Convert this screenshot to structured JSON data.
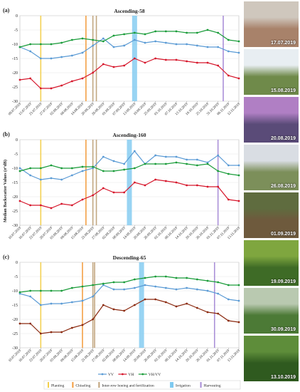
{
  "ylabel": "Median Backscatter Values (σ°dB)",
  "chart_data": [
    {
      "type": "line",
      "panel_label": "(a)",
      "title": "Ascending-58",
      "ylim": [
        -30,
        0
      ],
      "yticks": [
        0,
        -5,
        -10,
        -15,
        -20,
        -25,
        -30
      ],
      "x": [
        "09.07.2019",
        "15.07.2019",
        "21.07.2019",
        "27.07.2019",
        "02.08.2019",
        "08.08.2019",
        "14.08.2019",
        "20.08.2019",
        "26.08.2019",
        "01.09.2019",
        "07.09.2019",
        "13.09.2019",
        "19.09.2019",
        "25.09.2019",
        "01.10.2019",
        "07.10.2019",
        "13.10.2019",
        "19.10.2019",
        "25.10.2019",
        "31.10.2019",
        "06.11.2019",
        "12.11.2019"
      ],
      "series": [
        {
          "name": "VV",
          "color": "#5b9bd5",
          "values": [
            -11,
            -12.5,
            -15,
            -15,
            -14.5,
            -14,
            -13,
            -10.5,
            -8,
            -11,
            -10.5,
            -8.5,
            -9.5,
            -9,
            -9.5,
            -10,
            -10,
            -10.5,
            -11,
            -11,
            -12.5,
            -13
          ]
        },
        {
          "name": "VH",
          "color": "#d6162b",
          "values": [
            -22.5,
            -22,
            -25.5,
            -25.5,
            -24.5,
            -23,
            -22,
            -20,
            -17,
            -18,
            -17.5,
            -15,
            -16.5,
            -15,
            -15.5,
            -15.5,
            -16,
            -16.5,
            -16.5,
            -17.5,
            -21,
            -22
          ]
        },
        {
          "name": "VH/VV",
          "color": "#1a9c3a",
          "values": [
            -11,
            -10,
            -10,
            -10,
            -9.5,
            -8.5,
            -8,
            -8.5,
            -9,
            -7,
            -6.5,
            -6,
            -6.5,
            -5.5,
            -5.5,
            -5.5,
            -6,
            -6,
            -5,
            -6,
            -8.5,
            -9
          ]
        }
      ],
      "events": [
        {
          "type": "Planting",
          "x": "21.07.2019"
        },
        {
          "type": "Chiseling",
          "x": "16.08.2019"
        },
        {
          "type": "Inter-row hoeing and fertilization",
          "x": "20.08.2019"
        },
        {
          "type": "Inter-row hoeing and fertilization",
          "x": "22.08.2019"
        },
        {
          "type": "Irrigation",
          "x": "13.09.2019"
        },
        {
          "type": "Harvesting",
          "x": "03.11.2019"
        }
      ]
    },
    {
      "type": "line",
      "panel_label": "(b)",
      "title": "Ascending-160",
      "ylim": [
        -30,
        0
      ],
      "yticks": [
        0,
        -5,
        -10,
        -15,
        -20,
        -25,
        -30
      ],
      "x": [
        "10.07.2019",
        "16.07.2019",
        "22.07.2019",
        "28.07.2019",
        "03.08.2019",
        "09.08.2019",
        "15.08.2019",
        "21.08.2019",
        "27.08.2019",
        "02.09.2019",
        "08.09.2019",
        "14.09.2019",
        "20.09.2019",
        "26.09.2019",
        "02.10.2019",
        "08.10.2019",
        "14.10.2019",
        "20.10.2019",
        "26.10.2019",
        "01.11.2019",
        "07.11.2019",
        "13.11.2019"
      ],
      "series": [
        {
          "name": "VV",
          "color": "#5b9bd5",
          "values": [
            -10,
            -12.5,
            -14,
            -13.5,
            -14,
            -12.5,
            -11,
            -10,
            -6,
            -7.5,
            -8.5,
            -4,
            -8.5,
            -5.5,
            -6,
            -6,
            -7,
            -7,
            -8,
            -5.5,
            -9,
            -9
          ]
        },
        {
          "name": "VH",
          "color": "#d6162b",
          "values": [
            -21.5,
            -23,
            -23,
            -24,
            -22.5,
            -23,
            -21,
            -19.5,
            -17,
            -18.5,
            -18.5,
            -15,
            -16,
            -14,
            -14.5,
            -15,
            -16,
            -16,
            -16.5,
            -16.5,
            -21,
            -21.5
          ]
        },
        {
          "name": "VH/VV",
          "color": "#1a9c3a",
          "values": [
            -11,
            -10,
            -10,
            -9,
            -10,
            -10,
            -9.5,
            -9.5,
            -11,
            -11,
            -10.5,
            -10,
            -8.5,
            -8.5,
            -8.5,
            -8,
            -8.5,
            -9,
            -8.5,
            -11,
            -12,
            -12.5
          ]
        }
      ],
      "events": [
        {
          "type": "Planting",
          "x": "22.07.2019"
        },
        {
          "type": "Chiseling",
          "x": "17.08.2019"
        },
        {
          "type": "Inter-row hoeing and fertilization",
          "x": "21.08.2019"
        },
        {
          "type": "Inter-row hoeing and fertilization",
          "x": "23.08.2019"
        },
        {
          "type": "Irrigation",
          "x": "11.09.2019"
        },
        {
          "type": "Harvesting",
          "x": "01.11.2019"
        }
      ]
    },
    {
      "type": "line",
      "panel_label": "(c)",
      "title": "Descending-65",
      "ylim": [
        -30,
        0
      ],
      "yticks": [
        0,
        -5,
        -10,
        -15,
        -20,
        -25,
        -30
      ],
      "x": [
        "10.07.2019",
        "16.07.2019",
        "22.07.2019",
        "28.07.2019",
        "03.08.2019",
        "09.08.2019",
        "15.08.2019",
        "21.08.2019",
        "27.08.2019",
        "02.09.2019",
        "08.09.2019",
        "14.09.2019",
        "20.09.2019",
        "26.09.2019",
        "02.10.2019",
        "08.10.2019",
        "14.10.2019",
        "20.10.2019",
        "26.10.2019",
        "01.11.2019",
        "07.11.2019",
        "13.11.2019"
      ],
      "series": [
        {
          "name": "VV",
          "color": "#5b9bd5",
          "values": [
            -11,
            -12,
            -15,
            -14.5,
            -14.5,
            -14,
            -13.5,
            -12,
            -8,
            -9.5,
            -9.5,
            -9,
            -8,
            -8.5,
            -9,
            -9.5,
            -9,
            -9.5,
            -10,
            -11,
            -13,
            -13.5
          ]
        },
        {
          "name": "VH",
          "color": "#8b2a10",
          "values": [
            -21.5,
            -21.5,
            -25,
            -24.5,
            -24.5,
            -23,
            -22,
            -20,
            -15,
            -16.5,
            -17,
            -15,
            -13,
            -13,
            -14,
            -15.5,
            -14.5,
            -16,
            -17.5,
            -18,
            -20.5,
            -21
          ]
        },
        {
          "name": "VH/VV",
          "color": "#1a9c3a",
          "values": [
            -10.5,
            -10,
            -10,
            -10,
            -10,
            -9,
            -8.5,
            -8,
            -7.5,
            -7,
            -7,
            -6,
            -5.5,
            -5,
            -5,
            -5.5,
            -5.5,
            -6,
            -6.5,
            -7,
            -8,
            -8
          ]
        }
      ],
      "events": [
        {
          "type": "Planting",
          "x": "22.07.2019"
        },
        {
          "type": "Chiseling",
          "x": "15.08.2019"
        },
        {
          "type": "Inter-row hoeing and fertilization",
          "x": "21.08.2019"
        },
        {
          "type": "Inter-row hoeing and fertilization",
          "x": "22.08.2019"
        },
        {
          "type": "Irrigation",
          "x": "18.09.2019"
        },
        {
          "type": "Harvesting",
          "x": "30.10.2019"
        }
      ]
    }
  ],
  "series_legend": [
    {
      "name": "VV",
      "color": "#5b9bd5"
    },
    {
      "name": "VH",
      "color": "#d6162b"
    },
    {
      "name": "VH/VV",
      "color": "#1a9c3a"
    }
  ],
  "event_legend": [
    {
      "name": "Planting",
      "color": "#f2cf4a"
    },
    {
      "name": "Chiseling",
      "color": "#f29b3c"
    },
    {
      "name": "Inter-row hoeing and fertilization",
      "color": "#bfa27a"
    },
    {
      "name": "Irrigation",
      "color": "#7ec9f0"
    },
    {
      "name": "Harvesting",
      "color": "#a78bd6"
    }
  ],
  "photos": [
    {
      "date": "17.07.2019",
      "sky": "#cfc7bd",
      "ground": "#a8826a"
    },
    {
      "date": "15.08.2019",
      "sky": "#e8eef2",
      "ground": "#6f8a4a"
    },
    {
      "date": "20.08.2019",
      "sky": "#b07fc4",
      "ground": "#5a4b78"
    },
    {
      "date": "26.08.2019",
      "sky": "#d9dde3",
      "ground": "#7c8f5a"
    },
    {
      "date": "01.09.2019",
      "sky": "#5f6c3f",
      "ground": "#6e5a3d"
    },
    {
      "date": "19.09.2019",
      "sky": "#7fa63f",
      "ground": "#3e6b26"
    },
    {
      "date": "30.09.2019",
      "sky": "#b9c9b0",
      "ground": "#4c7a36"
    },
    {
      "date": "13.10.2019",
      "sky": "#5e8d3a",
      "ground": "#2f5a1f"
    }
  ]
}
